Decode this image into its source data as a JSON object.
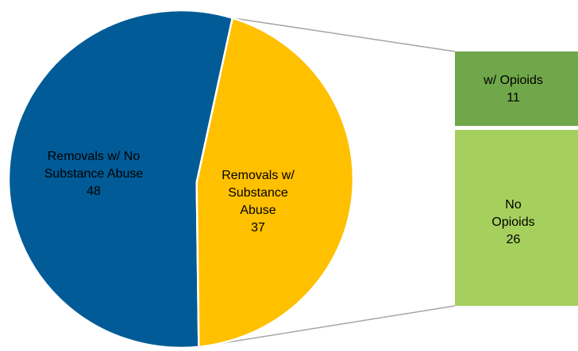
{
  "chart_data": {
    "type": "bar-of-pie",
    "pie": {
      "slices": [
        {
          "label_lines": [
            "Removals w/ No",
            "Substance Abuse"
          ],
          "value": 48,
          "color": "#005b96"
        },
        {
          "label_lines": [
            "Removals w/",
            "Substance",
            "Abuse"
          ],
          "value": 37,
          "color": "#ffc000"
        }
      ]
    },
    "bar": {
      "breakdown_of": "Removals w/ Substance Abuse",
      "segments": [
        {
          "label_lines": [
            "w/ Opioids"
          ],
          "value": 11,
          "color": "#70a74a"
        },
        {
          "label_lines": [
            "No",
            "Opioids"
          ],
          "value": 26,
          "color": "#a6d05e"
        }
      ]
    },
    "connector_color": "#a6a6a6"
  }
}
